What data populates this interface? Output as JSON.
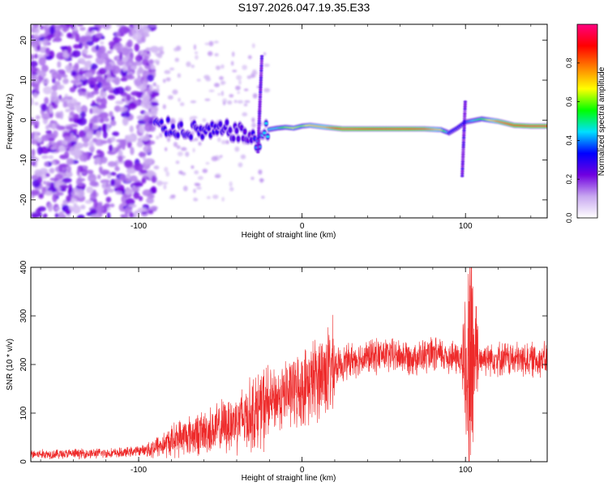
{
  "title": "S197.2026.047.19.35.E33",
  "chart_data": [
    {
      "type": "heatmap",
      "xlabel": "Height of straight line (km)",
      "ylabel": "Frequency (Hz)",
      "xlim": [
        -166,
        150
      ],
      "ylim": [
        -24.5,
        24
      ],
      "xticks": [
        {
          "v": -100,
          "label": "-100"
        },
        {
          "v": 0,
          "label": "0"
        },
        {
          "v": 100,
          "label": "100"
        }
      ],
      "yticks": [
        {
          "v": 20,
          "label": "20"
        },
        {
          "v": 10,
          "label": "10"
        },
        {
          "v": 0,
          "label": "0"
        },
        {
          "v": -10,
          "label": "-10"
        },
        {
          "v": -20,
          "label": "-20"
        }
      ],
      "colorbar": {
        "label": "Normalized spectral amplitude",
        "range": [
          0,
          1
        ],
        "ticks": [
          {
            "v": 0.0,
            "label": "0.0"
          },
          {
            "v": 0.2,
            "label": "0.2"
          },
          {
            "v": 0.4,
            "label": "0.4"
          },
          {
            "v": 0.6,
            "label": "0.6"
          },
          {
            "v": 0.8,
            "label": "0.8"
          }
        ],
        "colors": [
          "#ffffff",
          "#c8a8f0",
          "#7000e0",
          "#0000ff",
          "#00e0ff",
          "#00ff00",
          "#ffff00",
          "#ff8000",
          "#ff0000",
          "#ff0080"
        ]
      },
      "ridge": [
        {
          "x": -90,
          "f": -1.5,
          "a": 0.32
        },
        {
          "x": -80,
          "f": -2.0,
          "a": 0.3
        },
        {
          "x": -70,
          "f": -2.5,
          "a": 0.28
        },
        {
          "x": -55,
          "f": -3.0,
          "a": 0.3
        },
        {
          "x": -45,
          "f": -2.5,
          "a": 0.26
        },
        {
          "x": -32,
          "f": -4.0,
          "a": 0.22
        },
        {
          "x": -28,
          "f": -6.0,
          "a": 0.4
        },
        {
          "x": -22,
          "f": -2.5,
          "a": 0.45
        },
        {
          "x": -15,
          "f": -2.0,
          "a": 0.45
        },
        {
          "x": -10,
          "f": -1.8,
          "a": 0.6
        },
        {
          "x": -5,
          "f": -2.0,
          "a": 0.65
        },
        {
          "x": 0,
          "f": -1.5,
          "a": 0.6
        },
        {
          "x": 5,
          "f": -1.3,
          "a": 0.7
        },
        {
          "x": 15,
          "f": -1.8,
          "a": 0.75
        },
        {
          "x": 25,
          "f": -2.2,
          "a": 0.95
        },
        {
          "x": 40,
          "f": -2.2,
          "a": 0.92
        },
        {
          "x": 55,
          "f": -2.2,
          "a": 0.9
        },
        {
          "x": 65,
          "f": -2.2,
          "a": 0.9
        },
        {
          "x": 75,
          "f": -2.2,
          "a": 0.85
        },
        {
          "x": 85,
          "f": -2.4,
          "a": 0.7
        },
        {
          "x": 90,
          "f": -3.2,
          "a": 0.35
        },
        {
          "x": 95,
          "f": -2.0,
          "a": 0.3
        },
        {
          "x": 100,
          "f": -0.5,
          "a": 0.35
        },
        {
          "x": 110,
          "f": 0.3,
          "a": 0.55
        },
        {
          "x": 120,
          "f": -0.3,
          "a": 0.8
        },
        {
          "x": 130,
          "f": -1.3,
          "a": 0.9
        },
        {
          "x": 140,
          "f": -1.5,
          "a": 0.95
        },
        {
          "x": 150,
          "f": -1.5,
          "a": 0.95
        }
      ],
      "noise_region": {
        "x_from": -166,
        "x_to": -90,
        "f_from": -24.5,
        "f_to": 24
      }
    },
    {
      "type": "line",
      "xlabel": "Height of straight line (km)",
      "ylabel": "SNR (10 * v/v)",
      "xlim": [
        -166,
        150
      ],
      "ylim": [
        0,
        400
      ],
      "xticks": [
        {
          "v": -100,
          "label": "-100"
        },
        {
          "v": 0,
          "label": "0"
        },
        {
          "v": 100,
          "label": "100"
        }
      ],
      "yticks": [
        {
          "v": 0,
          "label": "0"
        },
        {
          "v": 100,
          "label": "100"
        },
        {
          "v": 200,
          "label": "200"
        },
        {
          "v": 300,
          "label": "300"
        },
        {
          "v": 400,
          "label": "400"
        }
      ],
      "series_color": "#ee2a2a",
      "baseline": [
        {
          "x": -166,
          "y": 15
        },
        {
          "x": -110,
          "y": 18
        },
        {
          "x": -95,
          "y": 25
        },
        {
          "x": -85,
          "y": 35
        },
        {
          "x": -75,
          "y": 50
        },
        {
          "x": -60,
          "y": 60
        },
        {
          "x": -50,
          "y": 70
        },
        {
          "x": -40,
          "y": 85
        },
        {
          "x": -30,
          "y": 100
        },
        {
          "x": -20,
          "y": 120
        },
        {
          "x": -10,
          "y": 140
        },
        {
          "x": 0,
          "y": 150
        },
        {
          "x": 10,
          "y": 175
        },
        {
          "x": 20,
          "y": 195
        },
        {
          "x": 30,
          "y": 210
        },
        {
          "x": 50,
          "y": 220
        },
        {
          "x": 70,
          "y": 215
        },
        {
          "x": 85,
          "y": 220
        },
        {
          "x": 100,
          "y": 210
        },
        {
          "x": 115,
          "y": 215
        },
        {
          "x": 130,
          "y": 210
        },
        {
          "x": 150,
          "y": 210
        }
      ],
      "burst": {
        "x_from": 98,
        "x_to": 108,
        "y_min": 2,
        "y_max": 400
      }
    }
  ]
}
